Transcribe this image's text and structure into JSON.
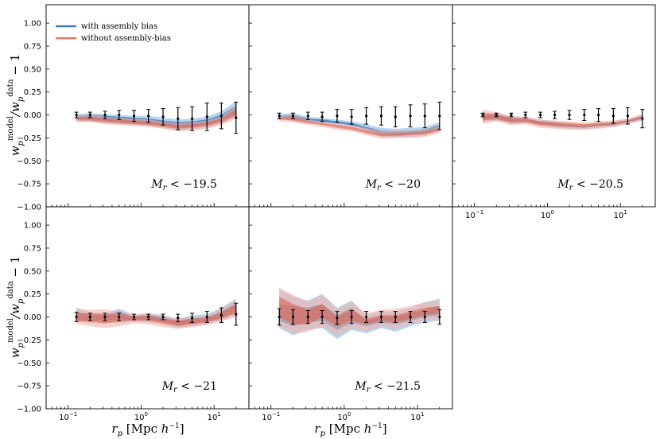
{
  "chart_data": {
    "type": "line",
    "layout": "2x3 grid, 5 panels, shared axes",
    "xscale": "log",
    "xlim": [
      0.05,
      30
    ],
    "ylim": [
      -1.0,
      1.2
    ],
    "x_ticks": [
      0.1,
      1,
      10
    ],
    "x_tick_labels": [
      "10−1",
      "100",
      "101"
    ],
    "y_ticks": [
      -1.0,
      -0.75,
      -0.5,
      -0.25,
      0.0,
      0.25,
      0.5,
      0.75,
      1.0
    ],
    "y_tick_labels": [
      "−1.00",
      "−0.75",
      "−0.50",
      "−0.25",
      "0.00",
      "0.25",
      "0.50",
      "0.75",
      "1.00"
    ],
    "xlabel": "r_p [Mpc h^−1]",
    "ylabel": "w_p^model / w_p^data − 1",
    "legend": {
      "placement": "top-left of first panel",
      "entries": [
        {
          "name": "with assembly bias",
          "color": "#3a7bbf"
        },
        {
          "name": "without assembly-bias",
          "color": "#f0705a"
        }
      ]
    },
    "colors": {
      "with_outer": "#a9cde8",
      "with_inner": "#3a7bbf",
      "without_outer": "#f6b3a8",
      "without_inner": "#e0624f",
      "errorbar": "#000000"
    },
    "x": [
      0.13,
      0.2,
      0.32,
      0.5,
      0.8,
      1.26,
      2.0,
      3.2,
      5.0,
      8.0,
      12.6,
      20.0
    ],
    "panels": [
      {
        "label": "M_r < −19.5",
        "with": {
          "outer_lo": [
            -0.06,
            -0.07,
            -0.09,
            -0.1,
            -0.11,
            -0.12,
            -0.14,
            -0.17,
            -0.16,
            -0.14,
            -0.1,
            -0.02
          ],
          "outer_hi": [
            0.01,
            0.02,
            0.01,
            0.0,
            -0.01,
            -0.01,
            -0.03,
            -0.05,
            -0.04,
            -0.02,
            0.04,
            0.15
          ],
          "inner_lo": [
            -0.04,
            -0.05,
            -0.06,
            -0.08,
            -0.09,
            -0.1,
            -0.11,
            -0.14,
            -0.13,
            -0.11,
            -0.06,
            0.02
          ],
          "inner_hi": [
            -0.01,
            0.0,
            -0.01,
            -0.02,
            -0.03,
            -0.04,
            -0.06,
            -0.08,
            -0.07,
            -0.05,
            0.0,
            0.1
          ]
        },
        "without": {
          "outer_lo": [
            -0.08,
            -0.08,
            -0.1,
            -0.11,
            -0.12,
            -0.13,
            -0.15,
            -0.18,
            -0.17,
            -0.15,
            -0.11,
            -0.04
          ],
          "outer_hi": [
            -0.01,
            0.0,
            -0.02,
            -0.03,
            -0.04,
            -0.05,
            -0.07,
            -0.09,
            -0.08,
            -0.06,
            -0.01,
            0.1
          ],
          "inner_lo": [
            -0.06,
            -0.06,
            -0.08,
            -0.09,
            -0.1,
            -0.11,
            -0.13,
            -0.15,
            -0.14,
            -0.12,
            -0.08,
            -0.01
          ],
          "inner_hi": [
            -0.03,
            -0.02,
            -0.04,
            -0.05,
            -0.06,
            -0.07,
            -0.09,
            -0.11,
            -0.1,
            -0.08,
            -0.04,
            0.06
          ]
        },
        "data_y": [
          0.0,
          0.0,
          0.0,
          0.0,
          -0.01,
          -0.01,
          -0.02,
          -0.04,
          -0.04,
          -0.02,
          -0.01,
          -0.03
        ],
        "data_err": [
          0.03,
          0.03,
          0.04,
          0.05,
          0.06,
          0.07,
          0.09,
          0.12,
          0.13,
          0.15,
          0.14,
          0.17
        ]
      },
      {
        "label": "M_r < −20",
        "with": {
          "outer_lo": [
            -0.05,
            -0.06,
            -0.09,
            -0.1,
            -0.12,
            -0.14,
            -0.19,
            -0.24,
            -0.25,
            -0.24,
            -0.23,
            -0.18
          ],
          "outer_hi": [
            0.01,
            0.02,
            -0.02,
            -0.03,
            -0.05,
            -0.07,
            -0.1,
            -0.14,
            -0.15,
            -0.14,
            -0.13,
            -0.08
          ],
          "inner_lo": [
            -0.03,
            -0.04,
            -0.07,
            -0.08,
            -0.09,
            -0.11,
            -0.16,
            -0.21,
            -0.22,
            -0.21,
            -0.2,
            -0.15
          ],
          "inner_hi": [
            -0.01,
            0.0,
            -0.04,
            -0.05,
            -0.07,
            -0.09,
            -0.13,
            -0.17,
            -0.18,
            -0.17,
            -0.16,
            -0.11
          ]
        },
        "without": {
          "outer_lo": [
            -0.07,
            -0.08,
            -0.11,
            -0.13,
            -0.16,
            -0.18,
            -0.22,
            -0.26,
            -0.25,
            -0.25,
            -0.24,
            -0.2
          ],
          "outer_hi": [
            -0.01,
            0.0,
            -0.05,
            -0.07,
            -0.09,
            -0.11,
            -0.14,
            -0.17,
            -0.17,
            -0.17,
            -0.16,
            -0.12
          ],
          "inner_lo": [
            -0.05,
            -0.06,
            -0.09,
            -0.11,
            -0.14,
            -0.16,
            -0.2,
            -0.23,
            -0.23,
            -0.22,
            -0.21,
            -0.17
          ],
          "inner_hi": [
            -0.03,
            -0.02,
            -0.07,
            -0.09,
            -0.11,
            -0.13,
            -0.17,
            -0.2,
            -0.2,
            -0.19,
            -0.18,
            -0.14
          ]
        },
        "data_y": [
          -0.01,
          -0.01,
          -0.01,
          -0.02,
          -0.01,
          -0.02,
          -0.01,
          -0.01,
          -0.02,
          -0.01,
          -0.01,
          -0.01
        ],
        "data_err": [
          0.03,
          0.03,
          0.04,
          0.05,
          0.07,
          0.08,
          0.09,
          0.1,
          0.11,
          0.12,
          0.13,
          0.15
        ]
      },
      {
        "label": "M_r < −20.5",
        "with": {
          "outer_lo": [
            -0.08,
            -0.06,
            -0.1,
            -0.09,
            -0.12,
            -0.14,
            -0.15,
            -0.16,
            -0.14,
            -0.13,
            -0.1,
            -0.06
          ],
          "outer_hi": [
            0.02,
            0.02,
            -0.02,
            -0.02,
            -0.05,
            -0.07,
            -0.09,
            -0.1,
            -0.08,
            -0.07,
            -0.04,
            0.0
          ],
          "inner_lo": [
            -0.05,
            -0.04,
            -0.08,
            -0.07,
            -0.1,
            -0.12,
            -0.13,
            -0.14,
            -0.12,
            -0.11,
            -0.08,
            -0.04
          ],
          "inner_hi": [
            -0.01,
            0.0,
            -0.04,
            -0.04,
            -0.07,
            -0.09,
            -0.11,
            -0.12,
            -0.1,
            -0.09,
            -0.06,
            -0.02
          ]
        },
        "without": {
          "outer_lo": [
            -0.1,
            -0.07,
            -0.11,
            -0.1,
            -0.14,
            -0.15,
            -0.16,
            -0.16,
            -0.15,
            -0.13,
            -0.1,
            -0.06
          ],
          "outer_hi": [
            0.06,
            0.03,
            -0.01,
            -0.02,
            -0.05,
            -0.06,
            -0.07,
            -0.08,
            -0.07,
            -0.06,
            -0.04,
            0.01
          ],
          "inner_lo": [
            -0.06,
            -0.05,
            -0.08,
            -0.08,
            -0.11,
            -0.12,
            -0.13,
            -0.13,
            -0.12,
            -0.11,
            -0.08,
            -0.04
          ],
          "inner_hi": [
            0.02,
            0.01,
            -0.03,
            -0.04,
            -0.07,
            -0.08,
            -0.09,
            -0.1,
            -0.09,
            -0.08,
            -0.06,
            -0.01
          ]
        },
        "data_y": [
          0.0,
          0.0,
          0.0,
          0.0,
          0.0,
          0.0,
          0.0,
          0.0,
          0.0,
          -0.01,
          -0.01,
          -0.04
        ],
        "data_err": [
          0.02,
          0.02,
          0.02,
          0.03,
          0.03,
          0.04,
          0.05,
          0.06,
          0.07,
          0.08,
          0.09,
          0.1
        ]
      },
      {
        "label": "M_r < −21",
        "with": {
          "outer_lo": [
            -0.05,
            -0.07,
            -0.06,
            -0.07,
            -0.05,
            -0.06,
            -0.08,
            -0.12,
            -0.1,
            -0.08,
            -0.04,
            0.02
          ],
          "outer_hi": [
            0.1,
            0.05,
            0.04,
            0.09,
            0.02,
            0.04,
            0.02,
            -0.02,
            0.02,
            0.03,
            0.1,
            0.2
          ],
          "inner_lo": [
            -0.03,
            -0.04,
            -0.03,
            -0.03,
            -0.03,
            -0.03,
            -0.05,
            -0.09,
            -0.07,
            -0.05,
            -0.01,
            0.06
          ],
          "inner_hi": [
            0.06,
            0.02,
            0.02,
            0.06,
            0.0,
            0.02,
            0.0,
            -0.04,
            -0.01,
            0.0,
            0.06,
            0.15
          ]
        },
        "without": {
          "outer_lo": [
            -0.08,
            -0.1,
            -0.12,
            -0.1,
            -0.07,
            -0.08,
            -0.11,
            -0.13,
            -0.11,
            -0.09,
            -0.05,
            0.0
          ],
          "outer_hi": [
            0.08,
            0.08,
            0.08,
            0.06,
            0.03,
            0.04,
            0.0,
            -0.01,
            0.0,
            0.02,
            0.09,
            0.18
          ],
          "inner_lo": [
            -0.05,
            -0.05,
            -0.07,
            -0.05,
            -0.04,
            -0.04,
            -0.07,
            -0.1,
            -0.08,
            -0.06,
            -0.02,
            0.04
          ],
          "inner_hi": [
            0.04,
            0.04,
            0.03,
            0.03,
            0.01,
            0.02,
            -0.02,
            -0.04,
            -0.02,
            -0.01,
            0.05,
            0.14
          ]
        },
        "data_y": [
          0.0,
          0.0,
          0.0,
          0.0,
          0.0,
          0.0,
          0.0,
          -0.01,
          -0.01,
          0.0,
          0.02,
          0.03
        ],
        "data_err": [
          0.05,
          0.04,
          0.04,
          0.04,
          0.03,
          0.03,
          0.03,
          0.04,
          0.05,
          0.06,
          0.08,
          0.12
        ]
      },
      {
        "label": "M_r < −21.5",
        "with": {
          "outer_lo": [
            -0.12,
            -0.2,
            -0.14,
            -0.12,
            -0.24,
            -0.14,
            -0.18,
            -0.12,
            -0.16,
            -0.1,
            -0.06,
            -0.04
          ],
          "outer_hi": [
            0.3,
            0.22,
            0.18,
            0.25,
            0.1,
            0.18,
            0.02,
            0.06,
            0.06,
            0.1,
            0.16,
            0.2
          ],
          "inner_lo": [
            -0.04,
            -0.1,
            -0.06,
            -0.04,
            -0.14,
            -0.06,
            -0.1,
            -0.06,
            -0.08,
            -0.04,
            0.0,
            0.02
          ],
          "inner_hi": [
            0.14,
            0.12,
            0.1,
            0.14,
            0.02,
            0.1,
            -0.04,
            0.0,
            0.0,
            0.04,
            0.08,
            0.12
          ]
        },
        "without": {
          "outer_lo": [
            -0.1,
            -0.18,
            -0.16,
            -0.1,
            -0.2,
            -0.12,
            -0.16,
            -0.1,
            -0.13,
            -0.08,
            -0.04,
            -0.02
          ],
          "outer_hi": [
            0.32,
            0.24,
            0.16,
            0.24,
            0.08,
            0.16,
            0.04,
            0.08,
            0.09,
            0.12,
            0.16,
            0.18
          ],
          "inner_lo": [
            0.0,
            -0.08,
            -0.08,
            0.0,
            -0.1,
            -0.04,
            -0.08,
            -0.04,
            -0.06,
            -0.02,
            0.02,
            0.04
          ],
          "inner_hi": [
            0.22,
            0.14,
            0.08,
            0.14,
            0.0,
            0.08,
            -0.02,
            0.02,
            0.02,
            0.06,
            0.1,
            0.12
          ]
        },
        "data_y": [
          0.0,
          0.0,
          0.0,
          0.0,
          -0.01,
          0.0,
          0.0,
          0.0,
          0.0,
          0.0,
          0.0,
          0.0
        ],
        "data_err": [
          0.09,
          0.08,
          0.07,
          0.07,
          0.07,
          0.07,
          0.06,
          0.06,
          0.06,
          0.06,
          0.06,
          0.08
        ]
      }
    ]
  }
}
